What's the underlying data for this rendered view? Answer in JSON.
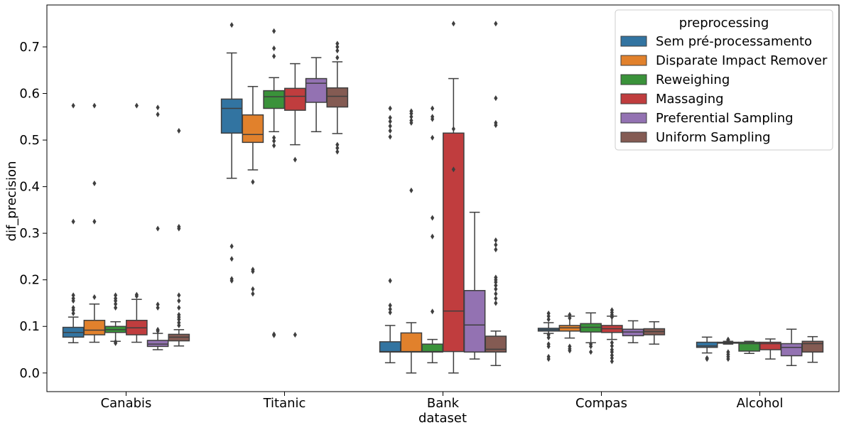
{
  "chart_data": {
    "type": "boxplot",
    "xlabel": "dataset",
    "ylabel": "dif_precision",
    "ylim": [
      -0.04,
      0.79
    ],
    "yticks": [
      0.0,
      0.1,
      0.2,
      0.3,
      0.4,
      0.5,
      0.6,
      0.7
    ],
    "ytick_labels": [
      "0.0",
      "0.1",
      "0.2",
      "0.3",
      "0.4",
      "0.5",
      "0.6",
      "0.7"
    ],
    "grid": false,
    "categories": [
      "Canabis",
      "Titanic",
      "Bank",
      "Compas",
      "Alcohol"
    ],
    "legend": {
      "title": "preprocessing",
      "placement": "top-right",
      "entries": [
        {
          "label": "Sem pré-processamento",
          "color": "#3274a1"
        },
        {
          "label": "Disparate Impact Remover",
          "color": "#e1812c"
        },
        {
          "label": "Reweighing",
          "color": "#3a923a"
        },
        {
          "label": "Massaging",
          "color": "#c03d3e"
        },
        {
          "label": "Preferential Sampling",
          "color": "#9372b2"
        },
        {
          "label": "Uniform Sampling",
          "color": "#845b53"
        }
      ]
    },
    "series": [
      {
        "name": "Sem pré-processamento",
        "boxes": [
          {
            "whislo": 0.065,
            "q1": 0.077,
            "med": 0.087,
            "q3": 0.098,
            "whishi": 0.12,
            "fliers": [
              0.574,
              0.325,
              0.167,
              0.16,
              0.155,
              0.14,
              0.135,
              0.128
            ]
          },
          {
            "whislo": 0.418,
            "q1": 0.515,
            "med": 0.568,
            "q3": 0.588,
            "whishi": 0.687,
            "fliers": [
              0.747,
              0.272,
              0.245,
              0.202,
              0.198
            ]
          },
          {
            "whislo": 0.022,
            "q1": 0.045,
            "med": 0.046,
            "q3": 0.067,
            "whishi": 0.102,
            "fliers": [
              0.568,
              0.548,
              0.54,
              0.53,
              0.52,
              0.507,
              0.198,
              0.145,
              0.137,
              0.13
            ]
          },
          {
            "whislo": 0.085,
            "q1": 0.09,
            "med": 0.093,
            "q3": 0.096,
            "whishi": 0.108,
            "fliers": [
              0.128,
              0.122,
              0.115,
              0.082,
              0.076,
              0.062,
              0.057,
              0.035,
              0.03
            ]
          },
          {
            "whislo": 0.043,
            "q1": 0.055,
            "med": 0.058,
            "q3": 0.066,
            "whishi": 0.077,
            "fliers": [
              0.032,
              0.03
            ]
          }
        ]
      },
      {
        "name": "Disparate Impact Remover",
        "boxes": [
          {
            "whislo": 0.066,
            "q1": 0.082,
            "med": 0.092,
            "q3": 0.113,
            "whishi": 0.148,
            "fliers": [
              0.574,
              0.407,
              0.325,
              0.163
            ]
          },
          {
            "whislo": 0.436,
            "q1": 0.495,
            "med": 0.512,
            "q3": 0.554,
            "whishi": 0.615,
            "fliers": [
              0.41,
              0.222,
              0.218,
              0.18,
              0.17
            ]
          },
          {
            "whislo": 0.0,
            "q1": 0.045,
            "med": 0.046,
            "q3": 0.086,
            "whishi": 0.108,
            "fliers": [
              0.562,
              0.557,
              0.55,
              0.542,
              0.537,
              0.392
            ]
          },
          {
            "whislo": 0.075,
            "q1": 0.09,
            "med": 0.097,
            "q3": 0.102,
            "whishi": 0.122,
            "fliers": [
              0.125,
              0.118,
              0.057,
              0.052,
              0.048
            ]
          },
          {
            "whislo": 0.062,
            "q1": 0.064,
            "med": 0.065,
            "q3": 0.066,
            "whishi": 0.068,
            "fliers": [
              0.072,
              0.07,
              0.045,
              0.04,
              0.035,
              0.03
            ]
          }
        ]
      },
      {
        "name": "Reweighing",
        "boxes": [
          {
            "whislo": 0.068,
            "q1": 0.087,
            "med": 0.093,
            "q3": 0.1,
            "whishi": 0.11,
            "fliers": [
              0.167,
              0.16,
              0.155,
              0.148,
              0.14,
              0.067,
              0.064
            ]
          },
          {
            "whislo": 0.518,
            "q1": 0.568,
            "med": 0.593,
            "q3": 0.606,
            "whishi": 0.634,
            "fliers": [
              0.734,
              0.697,
              0.68,
              0.505,
              0.498,
              0.488,
              0.083,
              0.081
            ]
          },
          {
            "whislo": 0.022,
            "q1": 0.045,
            "med": 0.046,
            "q3": 0.062,
            "whishi": 0.072,
            "fliers": [
              0.568,
              0.55,
              0.545,
              0.505,
              0.333,
              0.293,
              0.132
            ]
          },
          {
            "whislo": 0.065,
            "q1": 0.088,
            "med": 0.098,
            "q3": 0.106,
            "whishi": 0.129,
            "fliers": [
              0.062,
              0.057,
              0.045
            ]
          },
          {
            "whislo": 0.042,
            "q1": 0.047,
            "med": 0.063,
            "q3": 0.066,
            "whishi": 0.068,
            "fliers": []
          }
        ]
      },
      {
        "name": "Massaging",
        "boxes": [
          {
            "whislo": 0.066,
            "q1": 0.082,
            "med": 0.097,
            "q3": 0.113,
            "whishi": 0.158,
            "fliers": [
              0.574,
              0.168,
              0.165
            ]
          },
          {
            "whislo": 0.49,
            "q1": 0.564,
            "med": 0.594,
            "q3": 0.611,
            "whishi": 0.664,
            "fliers": [
              0.458,
              0.082
            ]
          },
          {
            "whislo": 0.0,
            "q1": 0.046,
            "med": 0.133,
            "q3": 0.515,
            "whishi": 0.632,
            "fliers": [
              0.75,
              0.524,
              0.437
            ]
          },
          {
            "whislo": 0.072,
            "q1": 0.087,
            "med": 0.095,
            "q3": 0.102,
            "whishi": 0.122,
            "fliers": [
              0.135,
              0.13,
              0.125,
              0.12,
              0.065,
              0.058,
              0.05,
              0.045,
              0.038,
              0.032,
              0.025
            ]
          },
          {
            "whislo": 0.03,
            "q1": 0.05,
            "med": 0.063,
            "q3": 0.066,
            "whishi": 0.073,
            "fliers": []
          }
        ]
      },
      {
        "name": "Preferential Sampling",
        "boxes": [
          {
            "whislo": 0.05,
            "q1": 0.057,
            "med": 0.062,
            "q3": 0.07,
            "whishi": 0.085,
            "fliers": [
              0.57,
              0.555,
              0.31,
              0.147,
              0.14,
              0.093,
              0.09
            ]
          },
          {
            "whislo": 0.518,
            "q1": 0.581,
            "med": 0.622,
            "q3": 0.632,
            "whishi": 0.677,
            "fliers": []
          },
          {
            "whislo": 0.03,
            "q1": 0.045,
            "med": 0.103,
            "q3": 0.177,
            "whishi": 0.345,
            "fliers": []
          },
          {
            "whislo": 0.065,
            "q1": 0.08,
            "med": 0.088,
            "q3": 0.094,
            "whishi": 0.112,
            "fliers": []
          },
          {
            "whislo": 0.016,
            "q1": 0.037,
            "med": 0.055,
            "q3": 0.063,
            "whishi": 0.094,
            "fliers": []
          }
        ]
      },
      {
        "name": "Uniform Sampling",
        "boxes": [
          {
            "whislo": 0.058,
            "q1": 0.069,
            "med": 0.077,
            "q3": 0.083,
            "whishi": 0.093,
            "fliers": [
              0.52,
              0.314,
              0.31,
              0.167,
              0.155,
              0.14,
              0.125,
              0.12,
              0.115,
              0.108,
              0.102
            ]
          },
          {
            "whislo": 0.514,
            "q1": 0.571,
            "med": 0.594,
            "q3": 0.612,
            "whishi": 0.668,
            "fliers": [
              0.707,
              0.7,
              0.692,
              0.677,
              0.49,
              0.483,
              0.475
            ]
          },
          {
            "whislo": 0.016,
            "q1": 0.045,
            "med": 0.051,
            "q3": 0.079,
            "whishi": 0.09,
            "fliers": [
              0.75,
              0.59,
              0.537,
              0.532,
              0.285,
              0.275,
              0.265,
              0.205,
              0.2,
              0.195,
              0.188,
              0.18,
              0.17,
              0.16,
              0.15
            ]
          },
          {
            "whislo": 0.062,
            "q1": 0.082,
            "med": 0.089,
            "q3": 0.095,
            "whishi": 0.11,
            "fliers": []
          },
          {
            "whislo": 0.023,
            "q1": 0.045,
            "med": 0.063,
            "q3": 0.068,
            "whishi": 0.078,
            "fliers": []
          }
        ]
      }
    ]
  }
}
